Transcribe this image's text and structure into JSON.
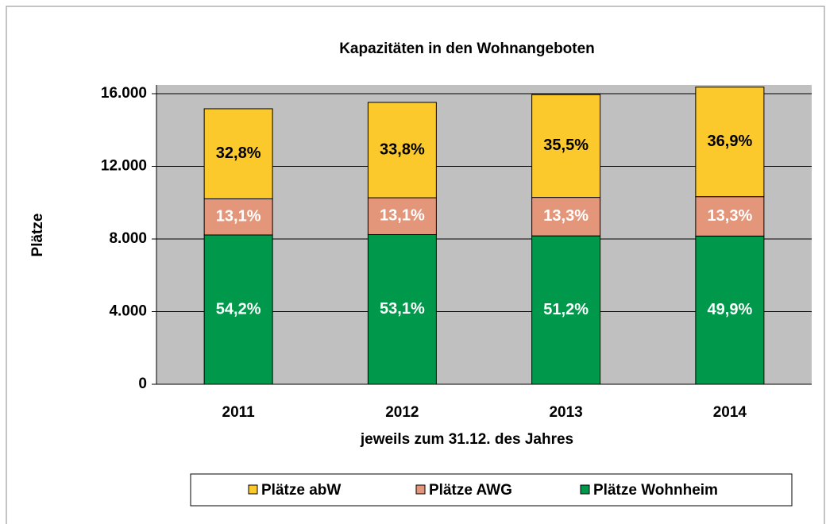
{
  "chart_data": {
    "type": "stacked_bar",
    "title": "Kapazitäten in den Wohnangeboten",
    "y_label": "Plätze",
    "x_label": "jeweils zum 31.12. des Jahres",
    "categories": [
      "2011",
      "2012",
      "2013",
      "2014"
    ],
    "series": [
      {
        "name": "Plätze Wohnheim",
        "color": "#00994c",
        "label_color": "#ffffff",
        "values": [
          8220,
          8240,
          8170,
          8160
        ],
        "share_labels": [
          "54,2%",
          "53,1%",
          "51,2%",
          "49,9%"
        ]
      },
      {
        "name": "Plätze AWG",
        "color": "#e39679",
        "label_color": "#ffffff",
        "values": [
          1990,
          2030,
          2120,
          2170
        ],
        "share_labels": [
          "13,1%",
          "13,1%",
          "13,3%",
          "13,3%"
        ]
      },
      {
        "name": "Plätze abW",
        "color": "#fbc92c",
        "label_color": "#000000",
        "values": [
          4960,
          5250,
          5660,
          6030
        ],
        "share_labels": [
          "32,8%",
          "33,8%",
          "35,5%",
          "36,9%"
        ]
      }
    ],
    "legend_order": [
      2,
      1,
      0
    ],
    "ylim": [
      0,
      16480
    ],
    "yticks": [
      0,
      {
        "value": 4000,
        "label": "4.000"
      },
      {
        "value": 8000,
        "label": "8.000"
      },
      {
        "value": 12000,
        "label": "12.000"
      },
      {
        "value": 16000,
        "label": "16.000"
      }
    ],
    "grid": true
  }
}
